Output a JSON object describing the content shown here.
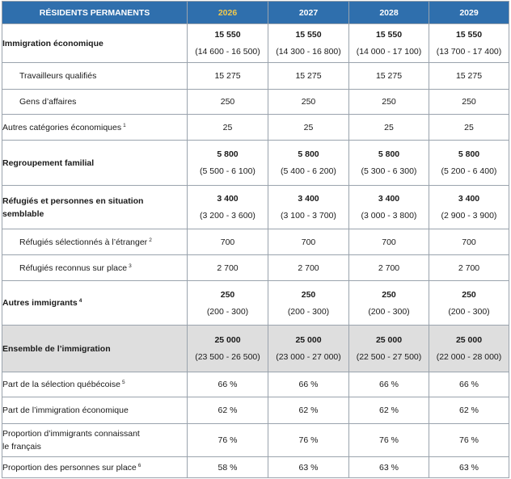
{
  "header": {
    "title": "RÉSIDENTS PERMANENTS",
    "years": [
      "2026",
      "2027",
      "2028",
      "2029"
    ]
  },
  "rows": {
    "eco": {
      "label": "Immigration économique",
      "values": [
        "15 550",
        "15 550",
        "15 550",
        "15 550"
      ],
      "ranges": [
        "(14 600 - 16 500)",
        "(14 300 - 16 800)",
        "(14 000 - 17 100)",
        "(13 700 - 17 400)"
      ]
    },
    "tq": {
      "label": "Travailleurs qualifiés",
      "values": [
        "15 275",
        "15 275",
        "15 275",
        "15 275"
      ]
    },
    "ga": {
      "label": "Gens d’affaires",
      "values": [
        "250",
        "250",
        "250",
        "250"
      ]
    },
    "ace": {
      "label": "Autres catégories économiques",
      "note": "1",
      "values": [
        "25",
        "25",
        "25",
        "25"
      ]
    },
    "rf": {
      "label": "Regroupement familial",
      "values": [
        "5 800",
        "5 800",
        "5 800",
        "5 800"
      ],
      "ranges": [
        "(5 500 - 6 100)",
        "(5 400 - 6 200)",
        "(5 300 - 6 300)",
        "(5 200 - 6 400)"
      ]
    },
    "ref": {
      "label_line1": "Réfugiés et personnes en situation",
      "label_line2": "semblable",
      "values": [
        "3 400",
        "3 400",
        "3 400",
        "3 400"
      ],
      "ranges": [
        "(3 200 - 3 600)",
        "(3 100 - 3 700)",
        "(3 000 - 3 800)",
        "(2 900 - 3 900)"
      ]
    },
    "rse": {
      "label": "Réfugiés sélectionnés à l’étranger",
      "note": "2",
      "values": [
        "700",
        "700",
        "700",
        "700"
      ]
    },
    "rrp": {
      "label": "Réfugiés reconnus sur place",
      "note": "3",
      "values": [
        "2 700",
        "2 700",
        "2 700",
        "2 700"
      ]
    },
    "ai": {
      "label": "Autres immigrants",
      "note": "4",
      "values": [
        "250",
        "250",
        "250",
        "250"
      ],
      "ranges": [
        "(200 - 300)",
        "(200 - 300)",
        "(200 - 300)",
        "(200 - 300)"
      ]
    },
    "total": {
      "label": "Ensemble de l’immigration",
      "values": [
        "25 000",
        "25 000",
        "25 000",
        "25 000"
      ],
      "ranges": [
        "(23 500 - 26 500)",
        "(23 000 - 27 000)",
        "(22 500 - 27 500)",
        "(22 000 - 28 000)"
      ]
    },
    "psq": {
      "label": "Part de la sélection québécoise",
      "note": "5",
      "values": [
        "66 %",
        "66 %",
        "66 %",
        "66 %"
      ]
    },
    "pie": {
      "label": "Part de l’immigration économique",
      "values": [
        "62 %",
        "62 %",
        "62 %",
        "62 %"
      ]
    },
    "pic": {
      "label_line1": "Proportion d’immigrants connaissant",
      "label_line2": "le français",
      "values": [
        "76 %",
        "76 %",
        "76 %",
        "76 %"
      ]
    },
    "pps": {
      "label": "Proportion des personnes sur place",
      "note": "6",
      "values": [
        "58 %",
        "63 %",
        "63 %",
        "63 %"
      ]
    }
  }
}
